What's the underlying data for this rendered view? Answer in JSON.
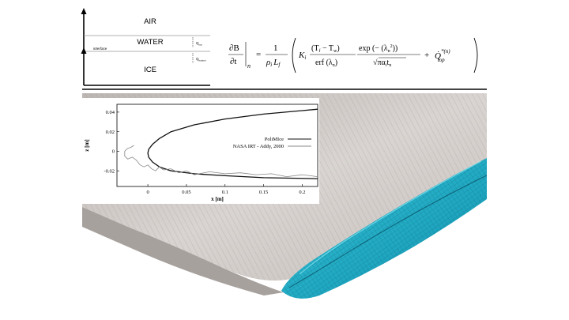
{
  "diagram": {
    "layers": [
      "AIR",
      "WATER",
      "ICE"
    ],
    "interface_label": "interface",
    "q_top_label": "Q",
    "q_top_sub": "top",
    "q_bottom_label": "Q",
    "q_bottom_sub": "bottom"
  },
  "equation": {
    "lhs_num": "∂B",
    "lhs_den": "∂t",
    "lhs_sub": "n",
    "eq": "=",
    "f1_num": "1",
    "f1_den": "ρ",
    "f1_den_sub": "i",
    "f1_den_L": "L",
    "f1_den_L_sub": "f",
    "K": "K",
    "K_sub": "i",
    "f2_num": "(T",
    "f2_num_sub1": "f",
    "f2_num_mid": " − T",
    "f2_num_sub2": "w",
    "f2_num_end": ")",
    "f2_den": "erf (λ",
    "f2_den_sub": "n",
    "f2_den_end": ")",
    "f3_num": "exp (− (λ",
    "f3_num_sub": "n",
    "f3_num_sup": "2",
    "f3_num_end": "))",
    "f3_den": "√πα",
    "f3_den_sub": "i",
    "f3_den_t": "t",
    "f3_den_t_sub": "n",
    "plus": "+",
    "qdot": "Q̇",
    "q_sup": "*(n)",
    "q_sub": "top"
  },
  "chart_data": {
    "type": "line",
    "xlabel": "x [m]",
    "ylabel": "z [m]",
    "xlim": [
      -0.04,
      0.22
    ],
    "ylim": [
      -0.036,
      0.048
    ],
    "xticks": [
      0,
      0.05,
      0.1,
      0.15,
      0.2
    ],
    "xtick_labels": [
      "0",
      "0.05",
      "0.1",
      "0.15",
      "0.2"
    ],
    "yticks": [
      0.04,
      0.02,
      0,
      -0.02
    ],
    "ytick_labels": [
      "0.04",
      "0.02",
      "0",
      "-0.02"
    ],
    "legend_position": "right",
    "series": [
      {
        "name": "PoliMIce",
        "color": "#111111",
        "x": [
          0.22,
          0.15,
          0.1,
          0.06,
          0.03,
          0.015,
          0.006,
          0.001,
          0,
          0.001,
          0.006,
          0.015,
          0.03,
          0.06,
          0.1,
          0.15,
          0.22
        ],
        "y": [
          0.043,
          0.038,
          0.033,
          0.027,
          0.02,
          0.013,
          0.007,
          0.002,
          -0.002,
          -0.006,
          -0.011,
          -0.016,
          -0.02,
          -0.023,
          -0.025,
          -0.027,
          -0.028
        ]
      },
      {
        "name": "NASA IRT - Addy, 2000",
        "color": "#888888",
        "x": [
          -0.018,
          -0.022,
          -0.026,
          -0.03,
          -0.03,
          -0.026,
          -0.02,
          -0.015,
          -0.01,
          -0.005,
          0.0,
          0.005,
          0.01,
          0.015,
          0.02,
          0.03,
          0.04,
          0.05,
          0.06,
          0.08,
          0.1,
          0.12,
          0.14,
          0.16,
          0.18,
          0.2,
          0.22
        ],
        "y": [
          0.006,
          0.004,
          0.003,
          0.0,
          -0.005,
          -0.008,
          -0.006,
          -0.009,
          -0.014,
          -0.016,
          -0.014,
          -0.018,
          -0.02,
          -0.016,
          -0.019,
          -0.018,
          -0.022,
          -0.02,
          -0.024,
          -0.021,
          -0.023,
          -0.022,
          -0.024,
          -0.023,
          -0.026,
          -0.024,
          -0.026
        ]
      }
    ]
  }
}
